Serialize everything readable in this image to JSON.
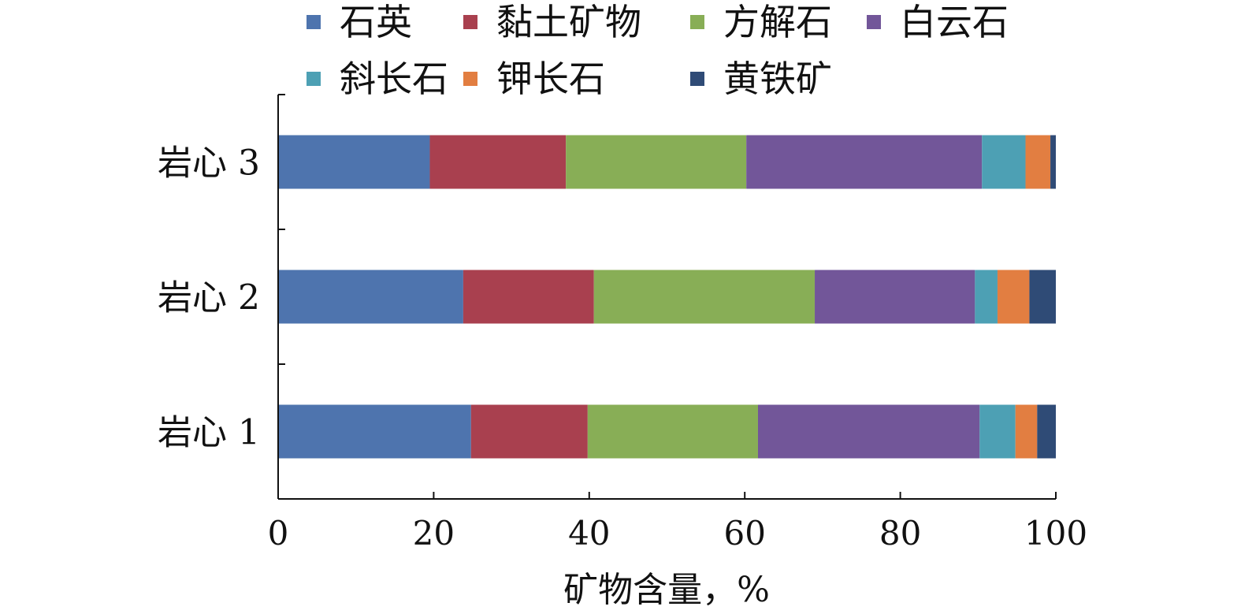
{
  "chart_data": {
    "type": "bar",
    "orientation": "horizontal",
    "stacked": true,
    "title": "",
    "xlabel": "矿物含量，%",
    "ylabel": "",
    "xlim": [
      0,
      100
    ],
    "x_ticks": [
      "0",
      "20",
      "40",
      "60",
      "80",
      "100"
    ],
    "grid": false,
    "legend_position": "top",
    "categories": [
      "岩心 3",
      "岩心 2",
      "岩心 1"
    ],
    "series": [
      {
        "name": "石英",
        "color": "#4E74AE",
        "values": [
          19.5,
          23.8,
          24.8
        ]
      },
      {
        "name": "黏土矿物",
        "color": "#A9404F",
        "values": [
          17.5,
          16.8,
          15.0
        ]
      },
      {
        "name": "方解石",
        "color": "#88AE56",
        "values": [
          23.2,
          28.4,
          21.9
        ]
      },
      {
        "name": "白云石",
        "color": "#725699",
        "values": [
          30.3,
          20.6,
          28.5
        ]
      },
      {
        "name": "斜长石",
        "color": "#4DA0B4",
        "values": [
          5.6,
          2.9,
          4.6
        ]
      },
      {
        "name": "钾长石",
        "color": "#E27E41",
        "values": [
          3.2,
          4.1,
          2.8
        ]
      },
      {
        "name": "黄铁矿",
        "color": "#2F4B76",
        "values": [
          0.7,
          3.4,
          2.4
        ]
      }
    ]
  }
}
